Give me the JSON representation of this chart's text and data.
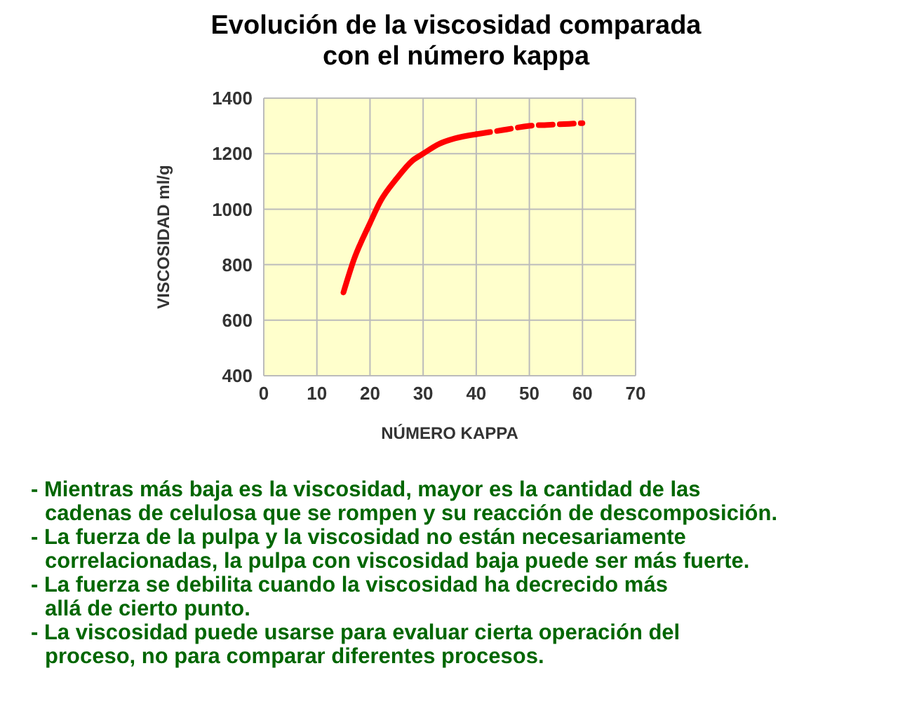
{
  "chart_data": {
    "type": "line",
    "title": "Evolución de la viscosidad comparada\ncon el número kappa",
    "xlabel": "NÚMERO KAPPA",
    "ylabel": "VISCOSIDAD ml/g",
    "xlim": [
      0,
      70
    ],
    "xticks": [
      0,
      10,
      20,
      30,
      40,
      50,
      60,
      70
    ],
    "ylim": [
      400,
      1400
    ],
    "yticks": [
      400,
      600,
      800,
      1000,
      1200,
      1400
    ],
    "grid": true,
    "marker": "none",
    "series": [
      {
        "color": "#ff0000",
        "line_style": "solid",
        "x": [
          15,
          17,
          20,
          22,
          25,
          28,
          30,
          33,
          36,
          40
        ],
        "values": [
          700,
          820,
          950,
          1030,
          1110,
          1175,
          1200,
          1235,
          1255,
          1270
        ]
      },
      {
        "color": "#ff0000",
        "line_style": "dashed",
        "x": [
          40,
          45,
          50,
          55,
          60
        ],
        "values": [
          1270,
          1285,
          1300,
          1305,
          1310
        ]
      }
    ],
    "annotations": [
      "- Mientras más baja es la viscosidad, mayor es la cantidad de las\ncadenas de celulosa que se rompen y su reacción de descomposición.",
      "- La fuerza de la pulpa y la viscosidad no están necesariamente\ncorrelacionadas, la pulpa con viscosidad baja puede ser más fuerte.",
      "- La fuerza se debilita cuando la viscosidad ha decrecido más\nallá de cierto punto.",
      "- La viscosidad puede usarse para evaluar cierta operación del\nproceso, no para comparar diferentes procesos."
    ]
  }
}
